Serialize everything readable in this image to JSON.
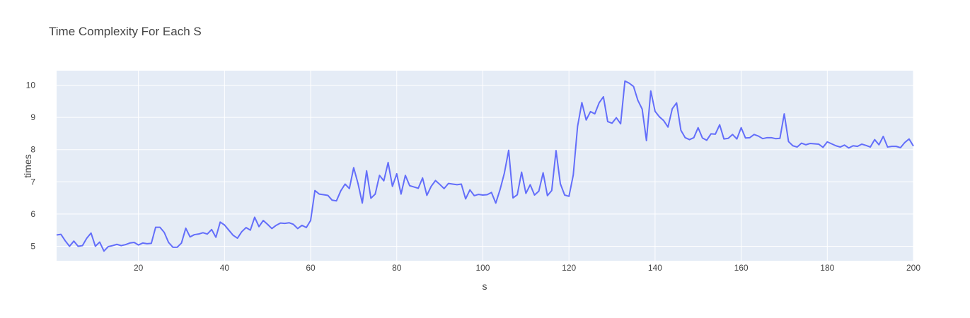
{
  "chart_data": {
    "type": "line",
    "title": "Time Complexity For Each S",
    "xlabel": "s",
    "ylabel": "times",
    "xlim": [
      1,
      200
    ],
    "ylim": [
      4.55,
      10.45
    ],
    "xticks": [
      20,
      40,
      60,
      80,
      100,
      120,
      140,
      160,
      180,
      200
    ],
    "yticks": [
      5,
      6,
      7,
      8,
      9,
      10
    ],
    "grid": true,
    "legend": "none",
    "colors": {
      "line": "#636efa",
      "plot_bg": "#e5ecf6",
      "grid": "#ffffff",
      "text": "#444444"
    },
    "series": [
      {
        "x": [
          1,
          2,
          3,
          4,
          5,
          6,
          7,
          8,
          9,
          10,
          11,
          12,
          13,
          14,
          15,
          16,
          17,
          18,
          19,
          20,
          21,
          22,
          23,
          24,
          25,
          26,
          27,
          28,
          29,
          30,
          31,
          32,
          33,
          34,
          35,
          36,
          37,
          38,
          39,
          40,
          41,
          42,
          43,
          44,
          45,
          46,
          47,
          48,
          49,
          50,
          51,
          52,
          53,
          54,
          55,
          56,
          57,
          58,
          59,
          60,
          61,
          62,
          63,
          64,
          65,
          66,
          67,
          68,
          69,
          70,
          71,
          72,
          73,
          74,
          75,
          76,
          77,
          78,
          79,
          80,
          81,
          82,
          83,
          84,
          85,
          86,
          87,
          88,
          89,
          90,
          91,
          92,
          93,
          94,
          95,
          96,
          97,
          98,
          99,
          100,
          101,
          102,
          103,
          104,
          105,
          106,
          107,
          108,
          109,
          110,
          111,
          112,
          113,
          114,
          115,
          116,
          117,
          118,
          119,
          120,
          121,
          122,
          123,
          124,
          125,
          126,
          127,
          128,
          129,
          130,
          131,
          132,
          133,
          134,
          135,
          136,
          137,
          138,
          139,
          140,
          141,
          142,
          143,
          144,
          145,
          146,
          147,
          148,
          149,
          150,
          151,
          152,
          153,
          154,
          155,
          156,
          157,
          158,
          159,
          160,
          161,
          162,
          163,
          164,
          165,
          166,
          167,
          168,
          169,
          170,
          171,
          172,
          173,
          174,
          175,
          176,
          177,
          178,
          179,
          180,
          181,
          182,
          183,
          184,
          185,
          186,
          187,
          188,
          189,
          190,
          191,
          192,
          193,
          194,
          195,
          196,
          197,
          198,
          199,
          200
        ],
        "y": [
          5.35,
          5.37,
          5.17,
          5.0,
          5.16,
          5.0,
          5.02,
          5.25,
          5.41,
          5.0,
          5.13,
          4.85,
          4.99,
          5.02,
          5.06,
          5.02,
          5.05,
          5.1,
          5.12,
          5.04,
          5.1,
          5.08,
          5.09,
          5.59,
          5.59,
          5.43,
          5.12,
          4.97,
          4.97,
          5.1,
          5.56,
          5.29,
          5.36,
          5.38,
          5.42,
          5.38,
          5.52,
          5.28,
          5.75,
          5.66,
          5.5,
          5.34,
          5.25,
          5.45,
          5.58,
          5.5,
          5.9,
          5.61,
          5.8,
          5.68,
          5.55,
          5.65,
          5.72,
          5.71,
          5.73,
          5.68,
          5.55,
          5.65,
          5.58,
          5.8,
          6.73,
          6.62,
          6.6,
          6.58,
          6.43,
          6.41,
          6.72,
          6.93,
          6.79,
          7.44,
          6.95,
          6.34,
          7.34,
          6.49,
          6.62,
          7.2,
          7.03,
          7.6,
          6.86,
          7.25,
          6.62,
          7.2,
          6.88,
          6.84,
          6.8,
          7.12,
          6.58,
          6.86,
          7.04,
          6.92,
          6.79,
          6.95,
          6.93,
          6.91,
          6.93,
          6.47,
          6.75,
          6.57,
          6.61,
          6.59,
          6.6,
          6.67,
          6.34,
          6.76,
          7.27,
          7.98,
          6.5,
          6.6,
          7.3,
          6.64,
          6.91,
          6.59,
          6.71,
          7.28,
          6.57,
          6.73,
          7.97,
          6.94,
          6.59,
          6.55,
          7.21,
          8.72,
          9.46,
          8.92,
          9.18,
          9.11,
          9.45,
          9.64,
          8.87,
          8.82,
          8.99,
          8.8,
          10.13,
          10.06,
          9.96,
          9.53,
          9.26,
          8.28,
          9.82,
          9.19,
          9.02,
          8.9,
          8.7,
          9.27,
          9.45,
          8.6,
          8.37,
          8.31,
          8.37,
          8.68,
          8.36,
          8.29,
          8.49,
          8.48,
          8.77,
          8.33,
          8.35,
          8.47,
          8.33,
          8.68,
          8.36,
          8.37,
          8.47,
          8.42,
          8.34,
          8.37,
          8.37,
          8.34,
          8.35,
          9.11,
          8.25,
          8.12,
          8.08,
          8.2,
          8.15,
          8.19,
          8.18,
          8.17,
          8.07,
          8.24,
          8.18,
          8.12,
          8.08,
          8.14,
          8.05,
          8.12,
          8.1,
          8.17,
          8.13,
          8.08,
          8.31,
          8.15,
          8.41,
          8.08,
          8.1,
          8.1,
          8.06,
          8.22,
          8.33,
          8.11
        ]
      }
    ]
  }
}
